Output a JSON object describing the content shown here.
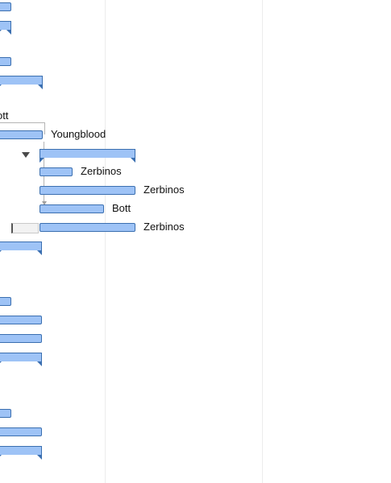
{
  "tasks": {
    "clipped_owner": "ott",
    "t1_owner": "Youngblood",
    "t2_owner": "Zerbinos",
    "t3_owner": "Zerbinos",
    "t4_owner": "Bott",
    "t5_owner": "Zerbinos"
  },
  "colors": {
    "bar_fill": "#9ec3f6",
    "bar_border": "#3b6fb0",
    "gridline": "#ececec",
    "connector": "#b4b4b4"
  },
  "icons": {
    "toggle": "collapse-triangle-icon",
    "handle": "resize-handle-icon"
  }
}
